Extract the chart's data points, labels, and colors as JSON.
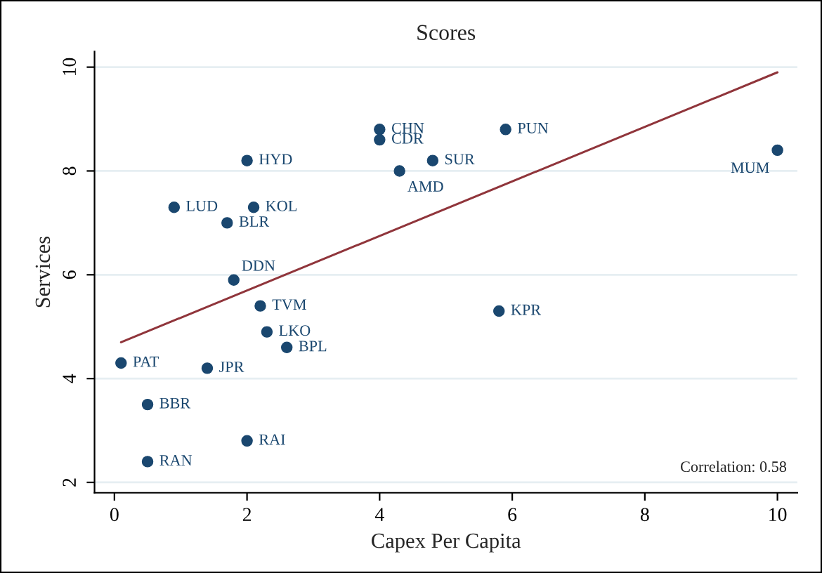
{
  "chart_data": {
    "type": "scatter",
    "title": "Scores",
    "xlabel": "Capex Per Capita",
    "ylabel": "Services",
    "xlim": [
      -0.3,
      10.3
    ],
    "ylim": [
      1.8,
      10.3
    ],
    "xticks": [
      0,
      2,
      4,
      6,
      8,
      10
    ],
    "yticks": [
      2,
      4,
      6,
      8,
      10
    ],
    "grid": "y",
    "legend": false,
    "marker": "circle",
    "series": [
      {
        "color": "#1a476f",
        "x": [
          0.1,
          2.0,
          0.9,
          2.1,
          1.7,
          1.8,
          2.2,
          2.3,
          2.6,
          1.4,
          0.5,
          2.0,
          0.5,
          4.0,
          4.0,
          4.3,
          4.8,
          5.9,
          5.8,
          10.0
        ],
        "values": [
          4.3,
          8.2,
          7.3,
          7.3,
          7.0,
          5.9,
          5.4,
          4.9,
          4.6,
          4.2,
          3.5,
          2.8,
          2.4,
          8.8,
          8.6,
          8.0,
          8.2,
          8.8,
          5.3,
          8.4
        ]
      },
      {
        "type": "line",
        "color": "#90353b",
        "line_style": "solid",
        "marker": "none",
        "x": [
          0.1,
          10.0
        ],
        "values": [
          4.7,
          9.9
        ]
      }
    ],
    "annotations": [
      {
        "text": "PAT",
        "x": 0.1,
        "y": 4.3
      },
      {
        "text": "HYD",
        "x": 2.0,
        "y": 8.2
      },
      {
        "text": "LUD",
        "x": 0.9,
        "y": 7.3
      },
      {
        "text": "KOL",
        "x": 2.1,
        "y": 7.3
      },
      {
        "text": "BLR",
        "x": 1.7,
        "y": 7.0
      },
      {
        "text": "DDN",
        "x": 1.8,
        "y": 5.9
      },
      {
        "text": "TVM",
        "x": 2.2,
        "y": 5.4
      },
      {
        "text": "LKO",
        "x": 2.3,
        "y": 4.9
      },
      {
        "text": "BPL",
        "x": 2.6,
        "y": 4.6
      },
      {
        "text": "JPR",
        "x": 1.4,
        "y": 4.2
      },
      {
        "text": "BBR",
        "x": 0.5,
        "y": 3.5
      },
      {
        "text": "RAI",
        "x": 2.0,
        "y": 2.8
      },
      {
        "text": "RAN",
        "x": 0.5,
        "y": 2.4
      },
      {
        "text": "CHN",
        "x": 4.0,
        "y": 8.8
      },
      {
        "text": "CDR",
        "x": 4.0,
        "y": 8.6
      },
      {
        "text": "AMD",
        "x": 4.3,
        "y": 8.0
      },
      {
        "text": "SUR",
        "x": 4.8,
        "y": 8.2
      },
      {
        "text": "PUN",
        "x": 5.9,
        "y": 8.8
      },
      {
        "text": "KPR",
        "x": 5.8,
        "y": 5.3
      },
      {
        "text": "MUM",
        "x": 10.0,
        "y": 8.4
      },
      "Correlation: 0.58"
    ]
  }
}
